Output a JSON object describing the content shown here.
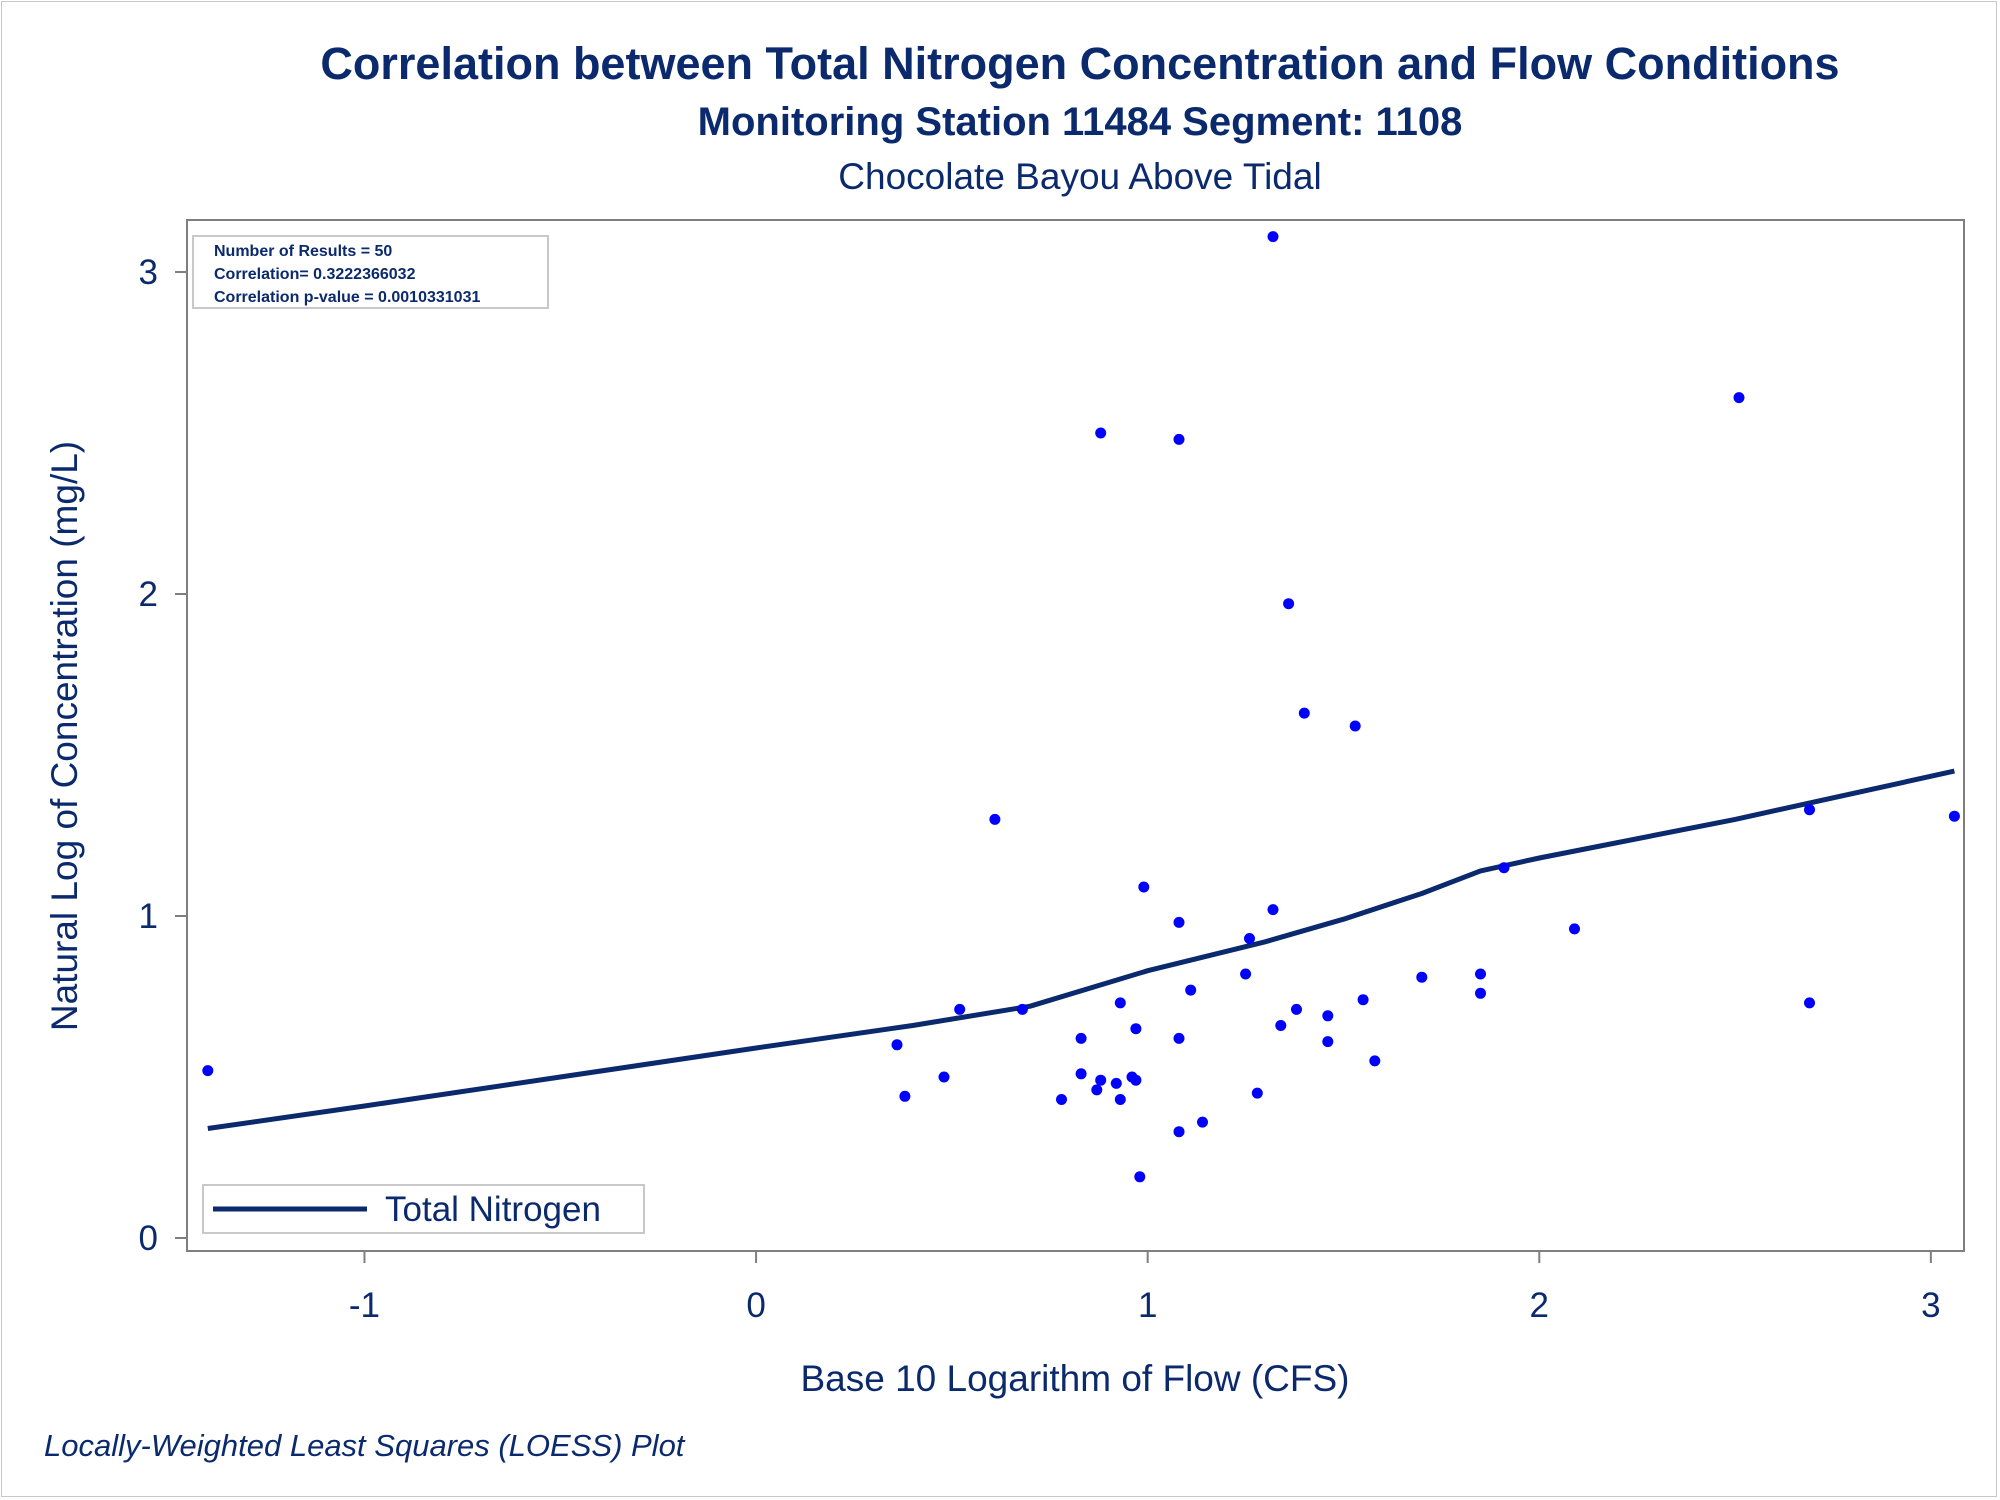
{
  "titles": {
    "title": "Correlation between Total Nitrogen Concentration and Flow Conditions",
    "subtitle": "Monitoring Station 11484 Segment: 1108",
    "subtitle2": "Chocolate Bayou Above Tidal"
  },
  "footnote": "Locally-Weighted Least Squares (LOESS) Plot",
  "stats_box": {
    "line1": "Number of Results = 50",
    "line2": "Correlation= 0.3222366032",
    "line3": "Correlation p-value = 0.0010331031"
  },
  "colors": {
    "text": "#0b2a6e",
    "points": "#0000ff",
    "line": "#0b2a6e",
    "axis": "#7f7f7f"
  },
  "chart_data": {
    "type": "scatter",
    "xlabel": "Base 10 Logarithm of Flow (CFS)",
    "ylabel": "Natural Log of Concentration (mg/L)",
    "xlim": [
      -1.42,
      3.06
    ],
    "ylim": [
      0,
      3.12
    ],
    "xticks": [
      -1,
      0,
      1,
      2,
      3
    ],
    "yticks": [
      0,
      1,
      2,
      3
    ],
    "xtick_labels": [
      "-1",
      "0",
      "1",
      "2",
      "3"
    ],
    "ytick_labels": [
      "0",
      "1",
      "2",
      "3"
    ],
    "legend": {
      "position": "bottom-left",
      "entries": [
        "Total Nitrogen"
      ]
    },
    "series": [
      {
        "kind": "scatter",
        "values": [
          {
            "x": -1.4,
            "y": 0.52
          },
          {
            "x": 0.36,
            "y": 0.6
          },
          {
            "x": 0.38,
            "y": 0.44
          },
          {
            "x": 0.48,
            "y": 0.5
          },
          {
            "x": 0.52,
            "y": 0.71
          },
          {
            "x": 0.61,
            "y": 1.3
          },
          {
            "x": 0.68,
            "y": 0.71
          },
          {
            "x": 0.78,
            "y": 0.43
          },
          {
            "x": 0.83,
            "y": 0.51
          },
          {
            "x": 0.83,
            "y": 0.62
          },
          {
            "x": 0.87,
            "y": 0.46
          },
          {
            "x": 0.88,
            "y": 2.5
          },
          {
            "x": 0.88,
            "y": 0.49
          },
          {
            "x": 0.92,
            "y": 0.48
          },
          {
            "x": 0.93,
            "y": 0.43
          },
          {
            "x": 0.93,
            "y": 0.73
          },
          {
            "x": 0.96,
            "y": 0.5
          },
          {
            "x": 0.97,
            "y": 0.49
          },
          {
            "x": 0.97,
            "y": 0.65
          },
          {
            "x": 0.98,
            "y": 0.19
          },
          {
            "x": 0.99,
            "y": 1.09
          },
          {
            "x": 1.08,
            "y": 2.48
          },
          {
            "x": 1.08,
            "y": 0.98
          },
          {
            "x": 1.08,
            "y": 0.62
          },
          {
            "x": 1.08,
            "y": 0.33
          },
          {
            "x": 1.11,
            "y": 0.77
          },
          {
            "x": 1.14,
            "y": 0.36
          },
          {
            "x": 1.25,
            "y": 0.82
          },
          {
            "x": 1.26,
            "y": 0.93
          },
          {
            "x": 1.28,
            "y": 0.45
          },
          {
            "x": 1.32,
            "y": 3.11
          },
          {
            "x": 1.32,
            "y": 1.02
          },
          {
            "x": 1.34,
            "y": 0.66
          },
          {
            "x": 1.36,
            "y": 1.97
          },
          {
            "x": 1.38,
            "y": 0.71
          },
          {
            "x": 1.4,
            "y": 1.63
          },
          {
            "x": 1.46,
            "y": 0.69
          },
          {
            "x": 1.46,
            "y": 0.61
          },
          {
            "x": 1.53,
            "y": 1.59
          },
          {
            "x": 1.55,
            "y": 0.74
          },
          {
            "x": 1.58,
            "y": 0.55
          },
          {
            "x": 1.7,
            "y": 0.81
          },
          {
            "x": 1.85,
            "y": 0.82
          },
          {
            "x": 1.85,
            "y": 0.76
          },
          {
            "x": 1.91,
            "y": 1.15
          },
          {
            "x": 2.09,
            "y": 0.96
          },
          {
            "x": 2.51,
            "y": 2.61
          },
          {
            "x": 2.69,
            "y": 1.33
          },
          {
            "x": 2.69,
            "y": 0.73
          },
          {
            "x": 3.06,
            "y": 1.31
          }
        ]
      },
      {
        "name": "Total Nitrogen",
        "kind": "line",
        "values": [
          {
            "x": -1.4,
            "y": 0.34
          },
          {
            "x": -1.0,
            "y": 0.41
          },
          {
            "x": -0.5,
            "y": 0.5
          },
          {
            "x": 0.0,
            "y": 0.59
          },
          {
            "x": 0.4,
            "y": 0.66
          },
          {
            "x": 0.7,
            "y": 0.72
          },
          {
            "x": 1.0,
            "y": 0.83
          },
          {
            "x": 1.3,
            "y": 0.92
          },
          {
            "x": 1.5,
            "y": 0.99
          },
          {
            "x": 1.7,
            "y": 1.07
          },
          {
            "x": 1.85,
            "y": 1.14
          },
          {
            "x": 2.0,
            "y": 1.18
          },
          {
            "x": 2.5,
            "y": 1.3
          },
          {
            "x": 3.06,
            "y": 1.45
          }
        ]
      }
    ]
  }
}
